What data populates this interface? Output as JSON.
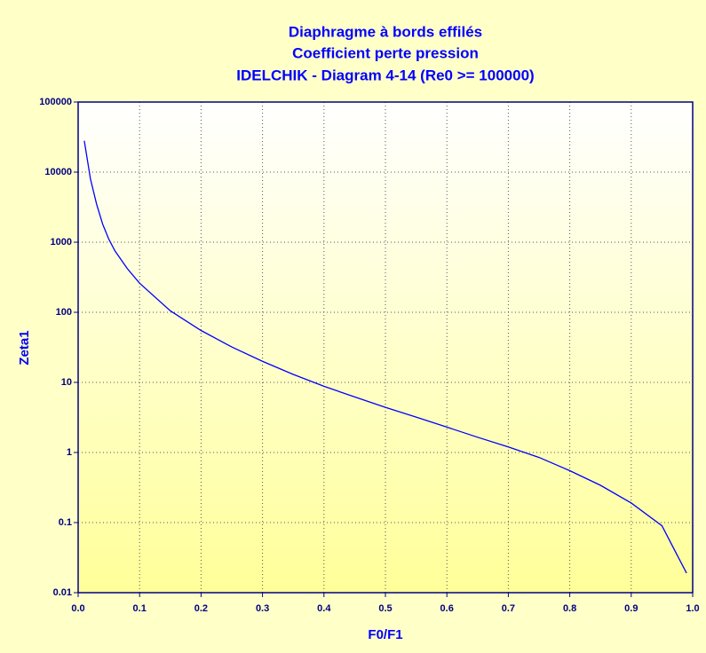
{
  "chart_data": {
    "type": "line",
    "title": [
      "Diaphragme à bords effilés",
      "Coefficient perte pression",
      "IDELCHIK - Diagram 4-14 (Re0 >= 100000)"
    ],
    "xlabel": "F0/F1",
    "ylabel": "Zeta1",
    "x": [
      0.01,
      0.02,
      0.03,
      0.04,
      0.05,
      0.06,
      0.08,
      0.1,
      0.15,
      0.2,
      0.25,
      0.3,
      0.35,
      0.4,
      0.45,
      0.5,
      0.55,
      0.6,
      0.65,
      0.7,
      0.75,
      0.8,
      0.85,
      0.9,
      0.95,
      0.99
    ],
    "values": [
      28000,
      8000,
      3500,
      1800,
      1100,
      750,
      420,
      260,
      105,
      55,
      32,
      20,
      13,
      8.8,
      6.2,
      4.4,
      3.2,
      2.3,
      1.65,
      1.2,
      0.85,
      0.55,
      0.34,
      0.19,
      0.09,
      0.019
    ],
    "color": "#0000ff",
    "xlim": [
      0,
      1
    ],
    "xticks": [
      {
        "value": 0,
        "label": "0.0"
      },
      0.1,
      0.2,
      0.3,
      0.4,
      0.5,
      0.6,
      0.7,
      0.8,
      0.9,
      {
        "value": 1,
        "label": "1.0"
      }
    ],
    "ylim": [
      0.01,
      100000
    ],
    "yticks": [
      0.01,
      0.1,
      1,
      10,
      100,
      1000,
      10000,
      100000
    ],
    "ylog": true,
    "grid": true
  }
}
